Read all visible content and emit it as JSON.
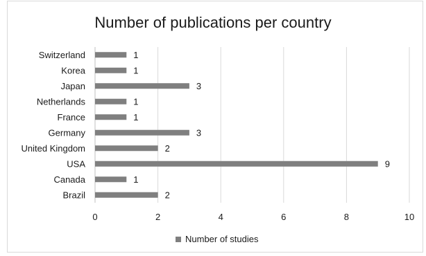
{
  "chart_data": {
    "type": "bar",
    "orientation": "horizontal",
    "title": "Number of publications per country",
    "categories": [
      "Brazil",
      "Canada",
      "USA",
      "United Kingdom",
      "Germany",
      "France",
      "Netherlands",
      "Japan",
      "Korea",
      "Switzerland"
    ],
    "series": [
      {
        "name": "Number of studies",
        "values": [
          2,
          1,
          9,
          2,
          3,
          1,
          1,
          3,
          1,
          1
        ]
      }
    ],
    "xlim": [
      0,
      10
    ],
    "xticks": [
      0,
      2,
      4,
      6,
      8,
      10
    ],
    "grid": true,
    "data_labels": true,
    "legend_position": "bottom",
    "colors": {
      "bar": "#7f7f7f",
      "grid": "#d9d9d9",
      "text": "#1a1a1a"
    }
  }
}
